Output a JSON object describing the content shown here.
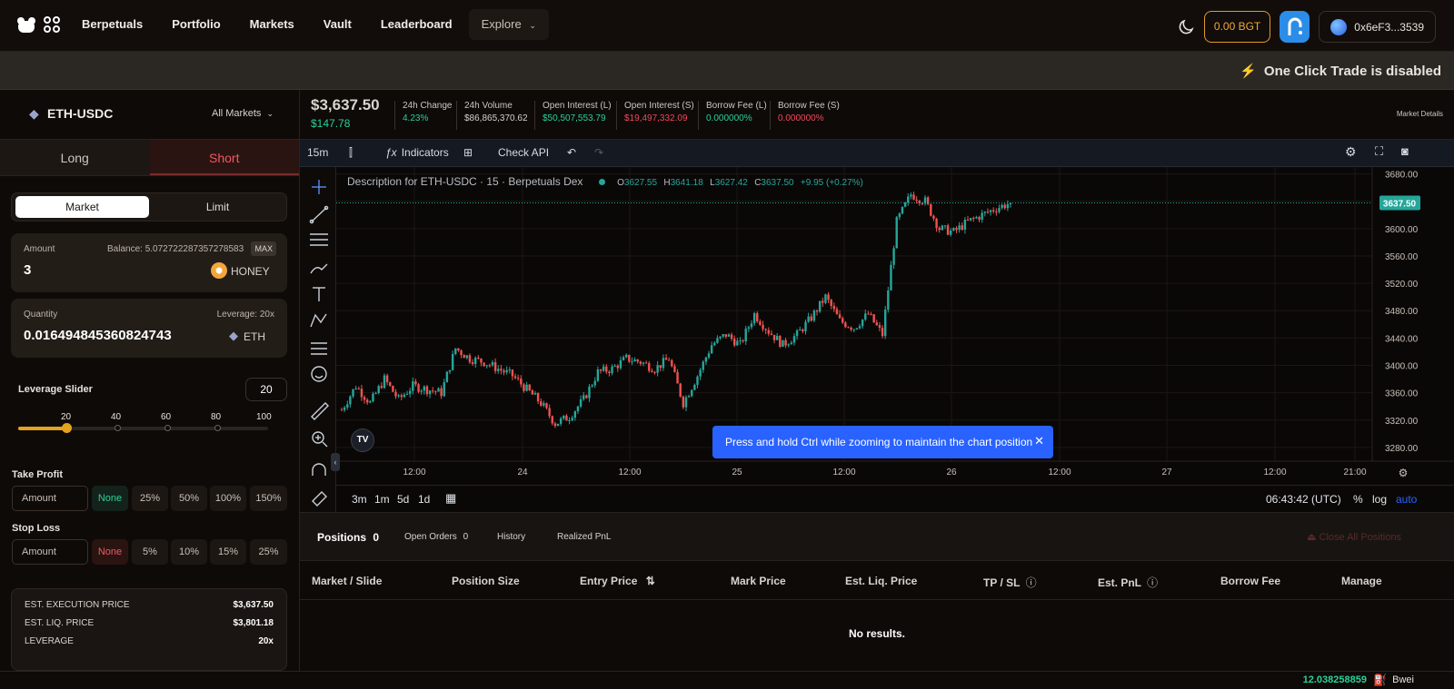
{
  "nav": {
    "links": [
      "Berpetuals",
      "Portfolio",
      "Markets",
      "Vault",
      "Leaderboard"
    ],
    "explore": "Explore",
    "bgt": "0.00 BGT",
    "wallet": "0x6eF3...3539"
  },
  "banner": {
    "text": "One Click Trade is disabled"
  },
  "market": {
    "pair": "ETH-USDC",
    "all_markets": "All Markets"
  },
  "side": {
    "long": "Long",
    "short": "Short"
  },
  "order_type": {
    "market": "Market",
    "limit": "Limit"
  },
  "amount": {
    "label": "Amount",
    "balance": "Balance: 5.072722287357278583",
    "max": "MAX",
    "value": "3",
    "token": "HONEY"
  },
  "quantity": {
    "label": "Quantity",
    "leverage": "Leverage: 20x",
    "value": "0.016494845360824743",
    "token": "ETH"
  },
  "leverage": {
    "label": "Leverage Slider",
    "value": "20",
    "ticks": [
      "20",
      "40",
      "60",
      "80",
      "100"
    ],
    "level": 20
  },
  "take_profit": {
    "label": "Take Profit",
    "placeholder": "Amount",
    "options": [
      "None",
      "25%",
      "50%",
      "100%",
      "150%"
    ]
  },
  "stop_loss": {
    "label": "Stop Loss",
    "placeholder": "Amount",
    "options": [
      "None",
      "5%",
      "10%",
      "15%",
      "25%"
    ]
  },
  "summary": [
    {
      "k": "EST. EXECUTION PRICE",
      "v": "$3,637.50"
    },
    {
      "k": "EST. LIQ. PRICE",
      "v": "$3,801.18"
    },
    {
      "k": "LEVERAGE",
      "v": "20x"
    }
  ],
  "infobar": {
    "price": "$3,637.50",
    "change": "$147.78",
    "stats": [
      {
        "k": "24h Change",
        "v": "4.23%",
        "c": "#2bd19a"
      },
      {
        "k": "24h Volume",
        "v": "$86,865,370.62",
        "c": "#d8d2cb"
      },
      {
        "k": "Open Interest (L)",
        "v": "$50,507,553.79",
        "c": "#2bd19a"
      },
      {
        "k": "Open Interest (S)",
        "v": "$19,497,332.09",
        "c": "#f2495c"
      },
      {
        "k": "Borrow Fee (L)",
        "v": "0.000000%",
        "c": "#2bd19a"
      },
      {
        "k": "Borrow Fee (S)",
        "v": "0.000000%",
        "c": "#f2495c"
      }
    ],
    "details": "Market Details"
  },
  "toolbar": {
    "interval": "15m",
    "indicators": "Indicators",
    "check_api": "Check API"
  },
  "chart": {
    "legend_title": "Description for ETH-USDC · 15 · Berpetuals Dex",
    "o": "3627.55",
    "h": "3641.18",
    "l": "3627.42",
    "c": "3637.50",
    "chg": "+9.95 (+0.27%)",
    "last_price": "3637.50",
    "toast": "Press and hold Ctrl while zooming to maintain the chart position",
    "time_ranges": [
      "3m",
      "1m",
      "5d",
      "1d"
    ],
    "clock": "06:43:42 (UTC)",
    "pct": "%",
    "log": "log",
    "auto": "auto",
    "colors": {
      "up": "#26a69a",
      "down": "#ef5350",
      "bg": "#0a0807"
    }
  },
  "chart_data": {
    "type": "candlestick",
    "title": "Description for ETH-USDC · 15 · Berpetuals Dex",
    "y_ticks": [
      3280,
      3320,
      3360,
      3400,
      3440,
      3480,
      3520,
      3560,
      3600,
      3640,
      3680
    ],
    "ylim": [
      3260,
      3690
    ],
    "x_ticks": [
      "12:00",
      "24",
      "12:00",
      "25",
      "12:00",
      "26",
      "12:00",
      "27",
      "12:00",
      "21:00"
    ],
    "close_path": [
      3335,
      3370,
      3345,
      3380,
      3350,
      3370,
      3365,
      3360,
      3425,
      3410,
      3405,
      3395,
      3385,
      3365,
      3345,
      3315,
      3325,
      3350,
      3390,
      3395,
      3410,
      3405,
      3395,
      3410,
      3345,
      3385,
      3430,
      3445,
      3430,
      3475,
      3450,
      3430,
      3445,
      3470,
      3500,
      3465,
      3455,
      3475,
      3445,
      3610,
      3650,
      3640,
      3600,
      3595,
      3610,
      3620,
      3630,
      3637.5
    ],
    "last": 3637.5,
    "grid": true
  },
  "positions": {
    "tabs": [
      {
        "label": "Positions",
        "count": "0"
      },
      {
        "label": "Open Orders",
        "count": "0"
      },
      {
        "label": "History",
        "count": ""
      },
      {
        "label": "Realized PnL",
        "count": ""
      }
    ],
    "close_all": "Close All Positions",
    "columns": [
      "Market / Slide",
      "Position Size",
      "Entry Price",
      "Mark Price",
      "Est. Liq. Price",
      "TP / SL",
      "Est. PnL",
      "Borrow Fee",
      "Manage"
    ],
    "empty": "No results."
  },
  "footer": {
    "gas": "12.038258859",
    "unit": "Bwei"
  }
}
